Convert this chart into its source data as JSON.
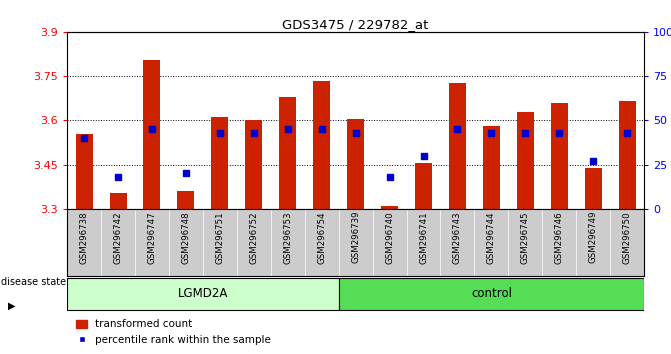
{
  "title": "GDS3475 / 229782_at",
  "samples": [
    "GSM296738",
    "GSM296742",
    "GSM296747",
    "GSM296748",
    "GSM296751",
    "GSM296752",
    "GSM296753",
    "GSM296754",
    "GSM296739",
    "GSM296740",
    "GSM296741",
    "GSM296743",
    "GSM296744",
    "GSM296745",
    "GSM296746",
    "GSM296749",
    "GSM296750"
  ],
  "bar_values": [
    3.555,
    3.355,
    3.805,
    3.36,
    3.61,
    3.6,
    3.68,
    3.735,
    3.605,
    3.31,
    3.455,
    3.725,
    3.58,
    3.63,
    3.66,
    3.44,
    3.665
  ],
  "percentile_values": [
    40,
    18,
    45,
    20,
    43,
    43,
    45,
    45,
    43,
    18,
    30,
    45,
    43,
    43,
    43,
    27,
    43
  ],
  "ymin": 3.3,
  "ymax": 3.9,
  "yticks": [
    3.3,
    3.45,
    3.6,
    3.75,
    3.9
  ],
  "right_yticks": [
    0,
    25,
    50,
    75,
    100
  ],
  "bar_color": "#cc2200",
  "dot_color": "#0000cc",
  "groups": [
    {
      "label": "LGMD2A",
      "start": 0,
      "end": 8,
      "color": "#ccffcc"
    },
    {
      "label": "control",
      "start": 8,
      "end": 17,
      "color": "#55dd55"
    }
  ],
  "disease_state_label": "disease state",
  "legend_bar_label": "transformed count",
  "legend_dot_label": "percentile rank within the sample",
  "bar_width": 0.5
}
